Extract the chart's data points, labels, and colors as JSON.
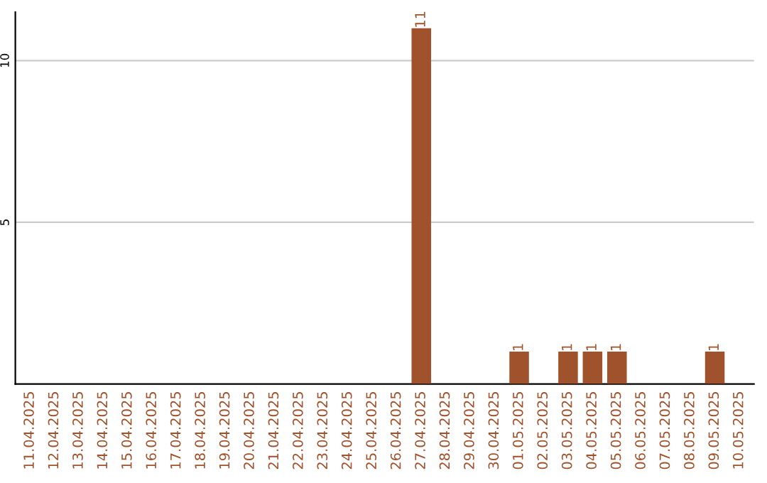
{
  "chart_data": {
    "type": "bar",
    "categories": [
      "11.04.2025",
      "12.04.2025",
      "13.04.2025",
      "14.04.2025",
      "15.04.2025",
      "16.04.2025",
      "17.04.2025",
      "18.04.2025",
      "19.04.2025",
      "20.04.2025",
      "21.04.2025",
      "22.04.2025",
      "23.04.2025",
      "24.04.2025",
      "25.04.2025",
      "26.04.2025",
      "27.04.2025",
      "28.04.2025",
      "29.04.2025",
      "30.04.2025",
      "01.05.2025",
      "02.05.2025",
      "03.05.2025",
      "04.05.2025",
      "05.05.2025",
      "06.05.2025",
      "07.05.2025",
      "08.05.2025",
      "09.05.2025",
      "10.05.2025"
    ],
    "values": [
      0,
      0,
      0,
      0,
      0,
      0,
      0,
      0,
      0,
      0,
      0,
      0,
      0,
      0,
      0,
      0,
      11,
      0,
      0,
      0,
      1,
      0,
      1,
      1,
      1,
      0,
      0,
      0,
      1,
      0
    ],
    "value_labels": [
      null,
      null,
      null,
      null,
      null,
      null,
      null,
      null,
      null,
      null,
      null,
      null,
      null,
      null,
      null,
      null,
      "11",
      null,
      null,
      null,
      "1",
      null,
      "1",
      "1",
      "1",
      null,
      null,
      null,
      "1",
      null
    ],
    "color": "#a0522d",
    "ylim": [
      0,
      11.5
    ],
    "yticks": [
      5,
      10
    ],
    "grid": "y"
  }
}
